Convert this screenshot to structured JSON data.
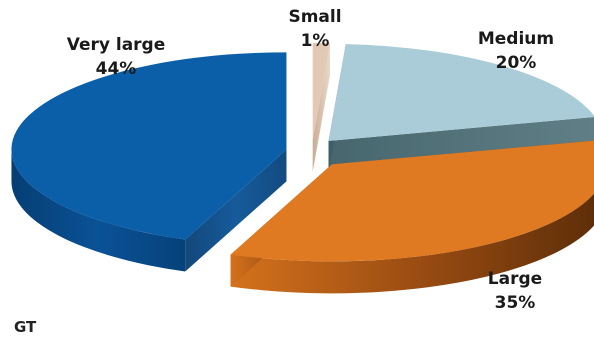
{
  "chart_data": {
    "type": "pie",
    "style": "3d-exploded",
    "title": "",
    "slices": [
      {
        "label": "Small",
        "value": 1,
        "display": "1%",
        "color": "#e2c9b5"
      },
      {
        "label": "Medium",
        "value": 20,
        "display": "20%",
        "color": "#a9ccd8"
      },
      {
        "label": "Large",
        "value": 35,
        "display": "35%",
        "color": "#e07a22"
      },
      {
        "label": "Very large",
        "value": 44,
        "display": "44%",
        "color": "#0a5fa8"
      }
    ],
    "legend": "none"
  },
  "source_note": "GT"
}
